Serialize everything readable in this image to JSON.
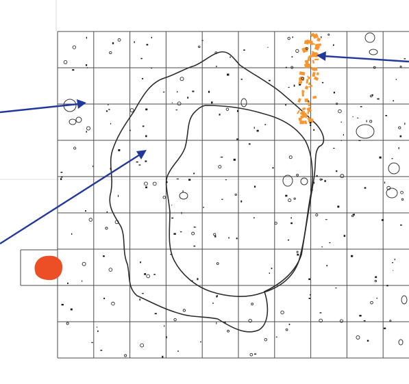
{
  "figure": {
    "colors": {
      "grid": "#4a4a4a",
      "outline": "#2b2b2b",
      "arrow": "#23399a",
      "orange_cluster": "#f7962f",
      "red_blob": "#ec4f25"
    },
    "grid": {
      "columns": 10,
      "rows": 9
    },
    "outer_outline": "irregular-contour",
    "inner_outline": "irregular-contour",
    "annotations": [
      {
        "name": "arrow-top-right",
        "points_to": "orange-cluster"
      },
      {
        "name": "arrow-left-upper",
        "points_to": "small-circle-feature"
      },
      {
        "name": "arrow-left-lower",
        "points_to": "outer-outline-interior"
      }
    ]
  }
}
